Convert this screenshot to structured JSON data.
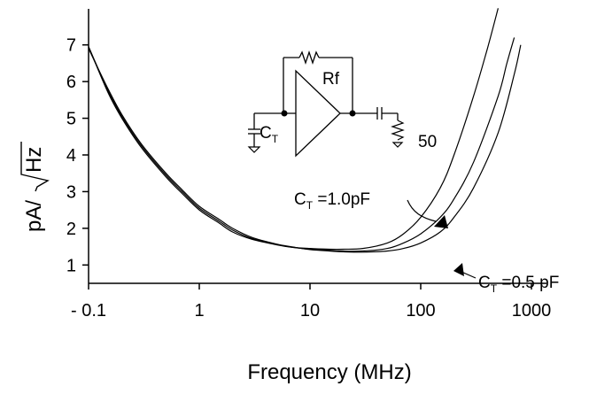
{
  "chart_data": {
    "type": "line",
    "xlabel": "Frequency (MHz)",
    "ylabel": "pA/",
    "ylabel_root": "Hz",
    "x_scale": "log",
    "xlim": [
      0.1,
      1000
    ],
    "ylim": [
      0.5,
      7.5
    ],
    "x_ticks": [
      {
        "value": 0.1,
        "label": "- 0.1"
      },
      {
        "value": 1,
        "label": "1"
      },
      {
        "value": 10,
        "label": "10"
      },
      {
        "value": 100,
        "label": "100"
      },
      {
        "value": 1000,
        "label": "1000"
      }
    ],
    "y_ticks": [
      {
        "value": 1,
        "label": "1"
      },
      {
        "value": 2,
        "label": "2"
      },
      {
        "value": 3,
        "label": "3"
      },
      {
        "value": 4,
        "label": "4"
      },
      {
        "value": 5,
        "label": "5"
      },
      {
        "value": 6,
        "label": "6"
      },
      {
        "value": 7,
        "label": "7"
      }
    ],
    "grid": false,
    "series": [
      {
        "x": [
          0.1,
          0.15,
          0.2,
          0.3,
          0.5,
          0.7,
          1,
          1.5,
          2,
          3,
          5,
          7,
          10,
          15,
          20,
          30,
          50,
          70,
          100,
          150,
          200,
          300,
          400,
          500
        ],
        "y": [
          6.95,
          5.7,
          5.0,
          4.2,
          3.4,
          2.95,
          2.5,
          2.15,
          1.9,
          1.7,
          1.55,
          1.48,
          1.45,
          1.43,
          1.43,
          1.45,
          1.6,
          1.85,
          2.3,
          3.1,
          4.0,
          5.6,
          6.9,
          8.0
        ]
      },
      {
        "x": [
          0.1,
          0.15,
          0.2,
          0.3,
          0.5,
          0.7,
          1,
          1.5,
          2,
          3,
          5,
          7,
          10,
          15,
          20,
          30,
          50,
          70,
          100,
          150,
          200,
          300,
          500,
          600,
          700
        ],
        "y": [
          6.95,
          5.75,
          5.05,
          4.25,
          3.45,
          3.0,
          2.55,
          2.2,
          1.95,
          1.72,
          1.56,
          1.48,
          1.43,
          1.4,
          1.38,
          1.38,
          1.45,
          1.6,
          1.85,
          2.3,
          2.8,
          3.8,
          5.6,
          6.5,
          7.2
        ]
      },
      {
        "x": [
          0.1,
          0.15,
          0.2,
          0.3,
          0.5,
          0.7,
          1,
          1.5,
          2,
          3,
          5,
          7,
          10,
          15,
          20,
          30,
          50,
          70,
          100,
          150,
          200,
          300,
          500,
          700,
          800
        ],
        "y": [
          6.9,
          5.8,
          5.1,
          4.3,
          3.5,
          3.05,
          2.6,
          2.25,
          2.0,
          1.75,
          1.57,
          1.49,
          1.42,
          1.38,
          1.36,
          1.35,
          1.38,
          1.45,
          1.6,
          1.9,
          2.3,
          3.1,
          4.6,
          6.2,
          7.0
        ]
      }
    ],
    "annotations": [
      {
        "text_main": "C",
        "text_sub": "T",
        "text_rest": " =1.0pF"
      },
      {
        "text_main": "C",
        "text_sub": "T",
        "text_rest": " =0.5 pF"
      }
    ],
    "schematic": {
      "rf_label": "Rf",
      "ct_main": "C",
      "ct_sub": "T",
      "load_label": "50"
    }
  }
}
